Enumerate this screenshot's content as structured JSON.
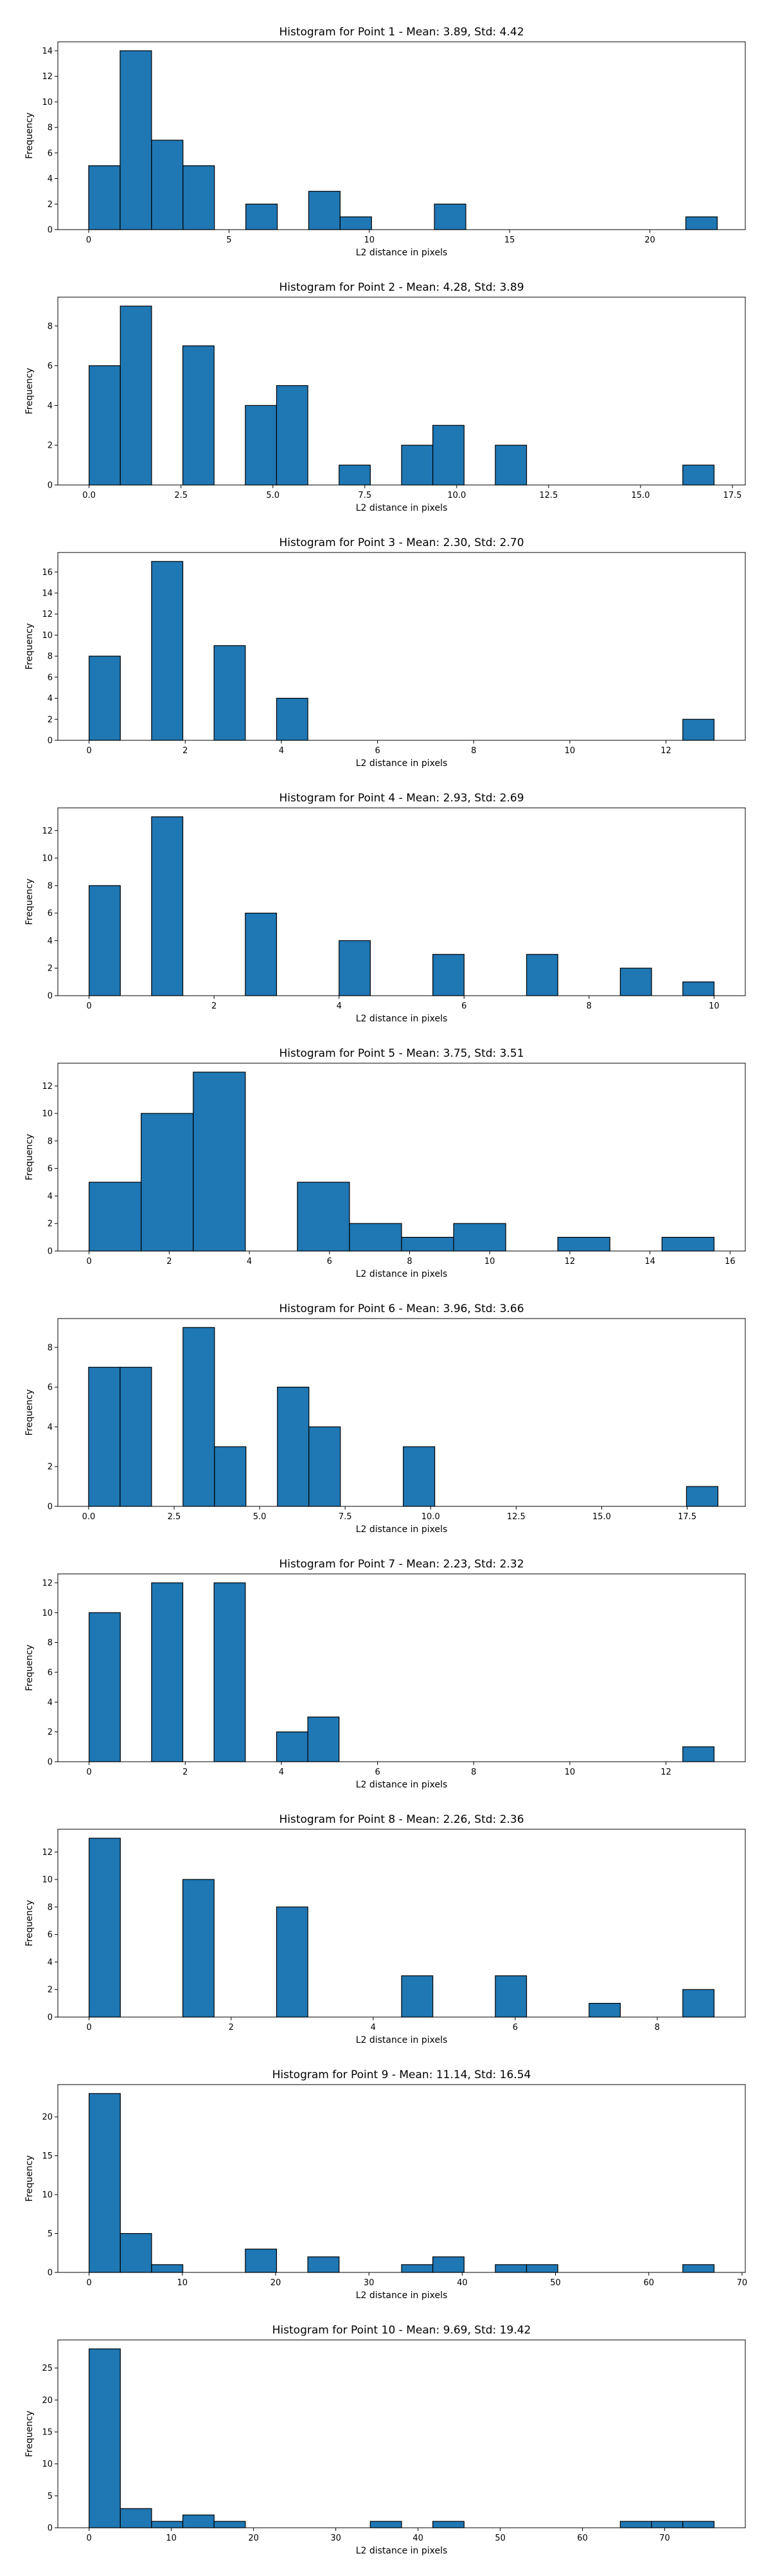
{
  "figure": {
    "background": "#ffffff",
    "bar_color": "#1f77b4",
    "edge_color": "#000000"
  },
  "chart_data": [
    {
      "type": "bar",
      "title": "Histogram for Point 1 - Mean: 3.89, Std: 4.42",
      "xlabel": "L2 distance in pixels",
      "ylabel": "Frequency",
      "xlim": [
        -1.1,
        23.4
      ],
      "ylim": [
        0,
        14.7
      ],
      "xticks": [
        0,
        5,
        10,
        15,
        20
      ],
      "xtick_labels": [
        "0",
        "5",
        "10",
        "15",
        "20"
      ],
      "yticks": [
        0,
        2,
        4,
        6,
        8,
        10,
        12,
        14
      ],
      "ytick_labels": [
        "0",
        "2",
        "4",
        "6",
        "8",
        "10",
        "12",
        "14"
      ],
      "bins": [
        {
          "x0": 0.0,
          "x1": 1.12,
          "count": 5
        },
        {
          "x0": 1.12,
          "x1": 2.24,
          "count": 14
        },
        {
          "x0": 2.24,
          "x1": 3.36,
          "count": 7
        },
        {
          "x0": 3.36,
          "x1": 4.48,
          "count": 5
        },
        {
          "x0": 5.6,
          "x1": 6.72,
          "count": 2
        },
        {
          "x0": 7.84,
          "x1": 8.96,
          "count": 3
        },
        {
          "x0": 8.96,
          "x1": 10.08,
          "count": 1
        },
        {
          "x0": 12.32,
          "x1": 13.44,
          "count": 2
        },
        {
          "x0": 21.28,
          "x1": 22.4,
          "count": 1
        }
      ]
    },
    {
      "type": "bar",
      "title": "Histogram for Point 2 - Mean: 4.28, Std: 3.89",
      "xlabel": "L2 distance in pixels",
      "ylabel": "Frequency",
      "xlim": [
        -0.85,
        17.85
      ],
      "ylim": [
        0,
        9.45
      ],
      "xticks": [
        0,
        2.5,
        5,
        7.5,
        10,
        12.5,
        15,
        17.5
      ],
      "xtick_labels": [
        "0.0",
        "2.5",
        "5.0",
        "7.5",
        "10.0",
        "12.5",
        "15.0",
        "17.5"
      ],
      "yticks": [
        0,
        2,
        4,
        6,
        8
      ],
      "ytick_labels": [
        "0",
        "2",
        "4",
        "6",
        "8"
      ],
      "bins": [
        {
          "x0": 0.0,
          "x1": 0.85,
          "count": 6
        },
        {
          "x0": 0.85,
          "x1": 1.7,
          "count": 9
        },
        {
          "x0": 2.55,
          "x1": 3.4,
          "count": 7
        },
        {
          "x0": 4.25,
          "x1": 5.1,
          "count": 4
        },
        {
          "x0": 5.1,
          "x1": 5.95,
          "count": 5
        },
        {
          "x0": 6.8,
          "x1": 7.65,
          "count": 1
        },
        {
          "x0": 8.5,
          "x1": 9.35,
          "count": 2
        },
        {
          "x0": 9.35,
          "x1": 10.2,
          "count": 3
        },
        {
          "x0": 11.05,
          "x1": 11.9,
          "count": 2
        },
        {
          "x0": 16.15,
          "x1": 17.0,
          "count": 1
        }
      ]
    },
    {
      "type": "bar",
      "title": "Histogram for Point 3 - Mean: 2.30, Std: 2.70",
      "xlabel": "L2 distance in pixels",
      "ylabel": "Frequency",
      "xlim": [
        -0.65,
        13.65
      ],
      "ylim": [
        0,
        17.85
      ],
      "xticks": [
        0,
        2,
        4,
        6,
        8,
        10,
        12
      ],
      "xtick_labels": [
        "0",
        "2",
        "4",
        "6",
        "8",
        "10",
        "12"
      ],
      "yticks": [
        0,
        2,
        4,
        6,
        8,
        10,
        12,
        14,
        16
      ],
      "ytick_labels": [
        "0",
        "2",
        "4",
        "6",
        "8",
        "10",
        "12",
        "14",
        "16"
      ],
      "bins": [
        {
          "x0": 0.0,
          "x1": 0.65,
          "count": 8
        },
        {
          "x0": 1.3,
          "x1": 1.95,
          "count": 17
        },
        {
          "x0": 2.6,
          "x1": 3.25,
          "count": 9
        },
        {
          "x0": 3.9,
          "x1": 4.55,
          "count": 4
        },
        {
          "x0": 12.35,
          "x1": 13.0,
          "count": 2
        }
      ]
    },
    {
      "type": "bar",
      "title": "Histogram for Point 4 - Mean: 2.93, Std: 2.69",
      "xlabel": "L2 distance in pixels",
      "ylabel": "Frequency",
      "xlim": [
        -0.5,
        10.5
      ],
      "ylim": [
        0,
        13.65
      ],
      "xticks": [
        0,
        2,
        4,
        6,
        8,
        10
      ],
      "xtick_labels": [
        "0",
        "2",
        "4",
        "6",
        "8",
        "10"
      ],
      "yticks": [
        0,
        2,
        4,
        6,
        8,
        10,
        12
      ],
      "ytick_labels": [
        "0",
        "2",
        "4",
        "6",
        "8",
        "10",
        "12"
      ],
      "bins": [
        {
          "x0": 0.0,
          "x1": 0.5,
          "count": 8
        },
        {
          "x0": 1.0,
          "x1": 1.5,
          "count": 13
        },
        {
          "x0": 2.5,
          "x1": 3.0,
          "count": 6
        },
        {
          "x0": 4.0,
          "x1": 4.5,
          "count": 4
        },
        {
          "x0": 5.5,
          "x1": 6.0,
          "count": 3
        },
        {
          "x0": 7.0,
          "x1": 7.5,
          "count": 3
        },
        {
          "x0": 8.5,
          "x1": 9.0,
          "count": 2
        },
        {
          "x0": 9.5,
          "x1": 10.0,
          "count": 1
        }
      ]
    },
    {
      "type": "bar",
      "title": "Histogram for Point 5 - Mean: 3.75, Std: 3.51",
      "xlabel": "L2 distance in pixels",
      "ylabel": "Frequency",
      "xlim": [
        -0.78,
        16.38
      ],
      "ylim": [
        0,
        13.65
      ],
      "xticks": [
        0,
        2,
        4,
        6,
        8,
        10,
        12,
        14,
        16
      ],
      "xtick_labels": [
        "0",
        "2",
        "4",
        "6",
        "8",
        "10",
        "12",
        "14",
        "16"
      ],
      "yticks": [
        0,
        2,
        4,
        6,
        8,
        10,
        12
      ],
      "ytick_labels": [
        "0",
        "2",
        "4",
        "6",
        "8",
        "10",
        "12"
      ],
      "bins": [
        {
          "x0": 0.0,
          "x1": 1.3,
          "count": 5
        },
        {
          "x0": 1.3,
          "x1": 2.6,
          "count": 10
        },
        {
          "x0": 2.6,
          "x1": 3.9,
          "count": 13
        },
        {
          "x0": 5.2,
          "x1": 6.5,
          "count": 5
        },
        {
          "x0": 6.5,
          "x1": 7.8,
          "count": 2
        },
        {
          "x0": 7.8,
          "x1": 9.1,
          "count": 1
        },
        {
          "x0": 9.1,
          "x1": 10.4,
          "count": 2
        },
        {
          "x0": 11.7,
          "x1": 13.0,
          "count": 1
        },
        {
          "x0": 14.3,
          "x1": 15.6,
          "count": 1
        }
      ]
    },
    {
      "type": "bar",
      "title": "Histogram for Point 6 - Mean: 3.96, Std: 3.66",
      "xlabel": "L2 distance in pixels",
      "ylabel": "Frequency",
      "xlim": [
        -0.9,
        19.2
      ],
      "ylim": [
        0,
        9.45
      ],
      "xticks": [
        0,
        2.5,
        5,
        7.5,
        10,
        12.5,
        15,
        17.5
      ],
      "xtick_labels": [
        "0.0",
        "2.5",
        "5.0",
        "7.5",
        "10.0",
        "12.5",
        "15.0",
        "17.5"
      ],
      "yticks": [
        0,
        2,
        4,
        6,
        8
      ],
      "ytick_labels": [
        "0",
        "2",
        "4",
        "6",
        "8"
      ],
      "bins": [
        {
          "x0": 0.0,
          "x1": 0.92,
          "count": 7
        },
        {
          "x0": 0.92,
          "x1": 1.84,
          "count": 7
        },
        {
          "x0": 2.76,
          "x1": 3.68,
          "count": 9
        },
        {
          "x0": 3.68,
          "x1": 4.6,
          "count": 3
        },
        {
          "x0": 5.52,
          "x1": 6.44,
          "count": 6
        },
        {
          "x0": 6.44,
          "x1": 7.36,
          "count": 4
        },
        {
          "x0": 9.2,
          "x1": 10.12,
          "count": 3
        },
        {
          "x0": 17.48,
          "x1": 18.4,
          "count": 1
        }
      ]
    },
    {
      "type": "bar",
      "title": "Histogram for Point 7 - Mean: 2.23, Std: 2.32",
      "xlabel": "L2 distance in pixels",
      "ylabel": "Frequency",
      "xlim": [
        -0.65,
        13.65
      ],
      "ylim": [
        0,
        12.6
      ],
      "xticks": [
        0,
        2,
        4,
        6,
        8,
        10,
        12
      ],
      "xtick_labels": [
        "0",
        "2",
        "4",
        "6",
        "8",
        "10",
        "12"
      ],
      "yticks": [
        0,
        2,
        4,
        6,
        8,
        10,
        12
      ],
      "ytick_labels": [
        "0",
        "2",
        "4",
        "6",
        "8",
        "10",
        "12"
      ],
      "bins": [
        {
          "x0": 0.0,
          "x1": 0.65,
          "count": 10
        },
        {
          "x0": 1.3,
          "x1": 1.95,
          "count": 12
        },
        {
          "x0": 2.6,
          "x1": 3.25,
          "count": 12
        },
        {
          "x0": 3.9,
          "x1": 4.55,
          "count": 2
        },
        {
          "x0": 4.55,
          "x1": 5.2,
          "count": 3
        },
        {
          "x0": 12.35,
          "x1": 13.0,
          "count": 1
        }
      ]
    },
    {
      "type": "bar",
      "title": "Histogram for Point 8 - Mean: 2.26, Std: 2.36",
      "xlabel": "L2 distance in pixels",
      "ylabel": "Frequency",
      "xlim": [
        -0.44,
        9.24
      ],
      "ylim": [
        0,
        13.65
      ],
      "xticks": [
        0,
        2,
        4,
        6,
        8
      ],
      "xtick_labels": [
        "0",
        "2",
        "4",
        "6",
        "8"
      ],
      "yticks": [
        0,
        2,
        4,
        6,
        8,
        10,
        12
      ],
      "ytick_labels": [
        "0",
        "2",
        "4",
        "6",
        "8",
        "10",
        "12"
      ],
      "bins": [
        {
          "x0": 0.0,
          "x1": 0.44,
          "count": 13
        },
        {
          "x0": 1.32,
          "x1": 1.76,
          "count": 10
        },
        {
          "x0": 2.64,
          "x1": 3.08,
          "count": 8
        },
        {
          "x0": 4.4,
          "x1": 4.84,
          "count": 3
        },
        {
          "x0": 5.72,
          "x1": 6.16,
          "count": 3
        },
        {
          "x0": 7.04,
          "x1": 7.48,
          "count": 1
        },
        {
          "x0": 8.36,
          "x1": 8.8,
          "count": 2
        }
      ]
    },
    {
      "type": "bar",
      "title": "Histogram for Point 9 - Mean: 11.14, Std: 16.54",
      "xlabel": "L2 distance in pixels",
      "ylabel": "Frequency",
      "xlim": [
        -3.35,
        70.35
      ],
      "ylim": [
        0,
        24.15
      ],
      "xticks": [
        0,
        10,
        20,
        30,
        40,
        50,
        60,
        70
      ],
      "xtick_labels": [
        "0",
        "10",
        "20",
        "30",
        "40",
        "50",
        "60",
        "70"
      ],
      "yticks": [
        0,
        5,
        10,
        15,
        20
      ],
      "ytick_labels": [
        "0",
        "5",
        "10",
        "15",
        "20"
      ],
      "bins": [
        {
          "x0": 0.0,
          "x1": 3.35,
          "count": 23
        },
        {
          "x0": 3.35,
          "x1": 6.7,
          "count": 5
        },
        {
          "x0": 6.7,
          "x1": 10.05,
          "count": 1
        },
        {
          "x0": 16.75,
          "x1": 20.1,
          "count": 3
        },
        {
          "x0": 23.45,
          "x1": 26.8,
          "count": 2
        },
        {
          "x0": 33.5,
          "x1": 36.85,
          "count": 1
        },
        {
          "x0": 36.85,
          "x1": 40.2,
          "count": 2
        },
        {
          "x0": 43.55,
          "x1": 46.9,
          "count": 1
        },
        {
          "x0": 46.9,
          "x1": 50.25,
          "count": 1
        },
        {
          "x0": 63.65,
          "x1": 67.0,
          "count": 1
        }
      ]
    },
    {
      "type": "bar",
      "title": "Histogram for Point 10 - Mean: 9.69, Std: 19.42",
      "xlabel": "L2 distance in pixels",
      "ylabel": "Frequency",
      "xlim": [
        -3.8,
        79.8
      ],
      "ylim": [
        0,
        29.4
      ],
      "xticks": [
        0,
        10,
        20,
        30,
        40,
        50,
        60,
        70
      ],
      "xtick_labels": [
        "0",
        "10",
        "20",
        "30",
        "40",
        "50",
        "60",
        "70"
      ],
      "yticks": [
        0,
        5,
        10,
        15,
        20,
        25
      ],
      "ytick_labels": [
        "0",
        "5",
        "10",
        "15",
        "20",
        "25"
      ],
      "bins": [
        {
          "x0": 0.0,
          "x1": 3.8,
          "count": 28
        },
        {
          "x0": 3.8,
          "x1": 7.6,
          "count": 3
        },
        {
          "x0": 7.6,
          "x1": 11.4,
          "count": 1
        },
        {
          "x0": 11.4,
          "x1": 15.2,
          "count": 2
        },
        {
          "x0": 15.2,
          "x1": 19.0,
          "count": 1
        },
        {
          "x0": 34.2,
          "x1": 38.0,
          "count": 1
        },
        {
          "x0": 41.8,
          "x1": 45.6,
          "count": 1
        },
        {
          "x0": 64.6,
          "x1": 68.4,
          "count": 1
        },
        {
          "x0": 68.4,
          "x1": 72.2,
          "count": 1
        },
        {
          "x0": 72.2,
          "x1": 76.0,
          "count": 1
        }
      ]
    }
  ]
}
